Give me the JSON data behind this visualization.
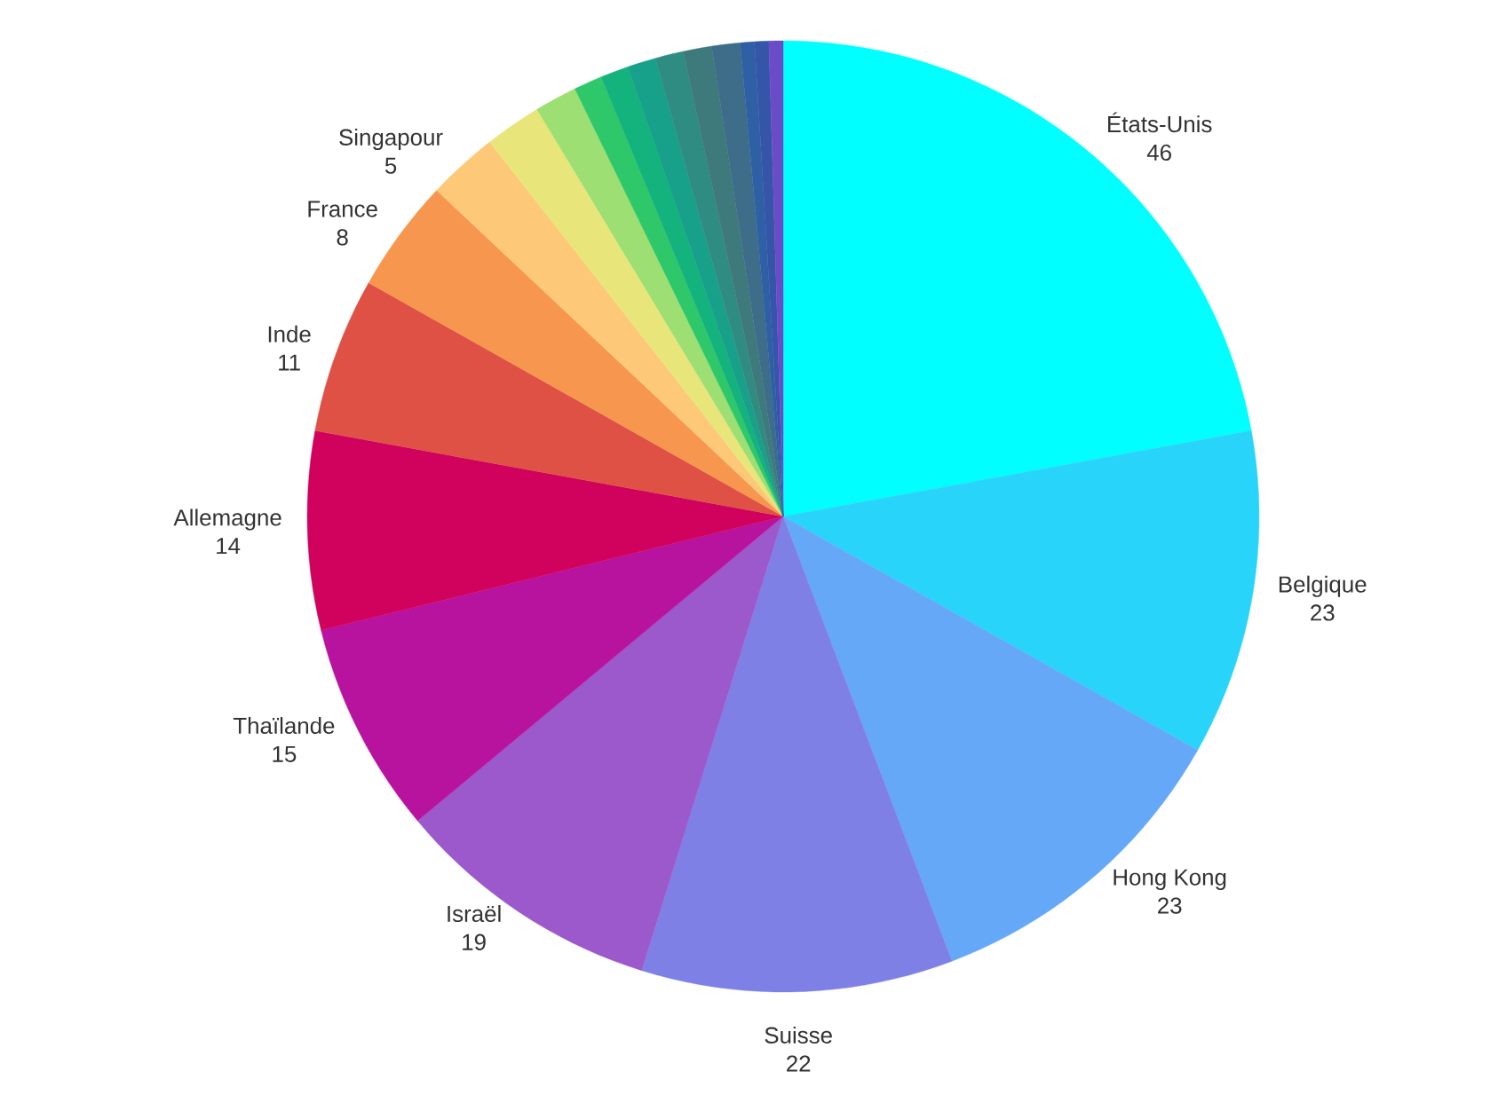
{
  "chart_data": {
    "type": "pie",
    "categories": [
      "États-Unis",
      "Belgique",
      "Hong Kong",
      "Suisse",
      "Israël",
      "Thaïlande",
      "Allemagne",
      "Inde",
      "France",
      "Singapour",
      null,
      null,
      null,
      null,
      null,
      null,
      null,
      null,
      null,
      null,
      null
    ],
    "values": [
      46,
      23,
      23,
      22,
      19,
      15,
      14,
      11,
      8,
      5,
      4,
      3,
      2,
      2,
      2,
      2,
      2,
      2,
      1,
      1,
      1
    ],
    "value_labels": [
      "46",
      "23",
      "23",
      "22",
      "19",
      "15",
      "14",
      "11",
      "8",
      "5",
      null,
      null,
      null,
      null,
      null,
      null,
      null,
      null,
      null,
      null,
      null
    ],
    "colors": [
      "#00ffff",
      "#29d4fb",
      "#66a8f8",
      "#7f80e6",
      "#9b59cc",
      "#b8139e",
      "#d0025d",
      "#df5145",
      "#f6964f",
      "#fdc877",
      "#e8e67b",
      "#9ddf73",
      "#2ec86a",
      "#14b27c",
      "#17a08a",
      "#2f8c83",
      "#3e7a7b",
      "#3e6d8a",
      "#2f60a5",
      "#3455a8",
      "#6a4cc6"
    ]
  }
}
